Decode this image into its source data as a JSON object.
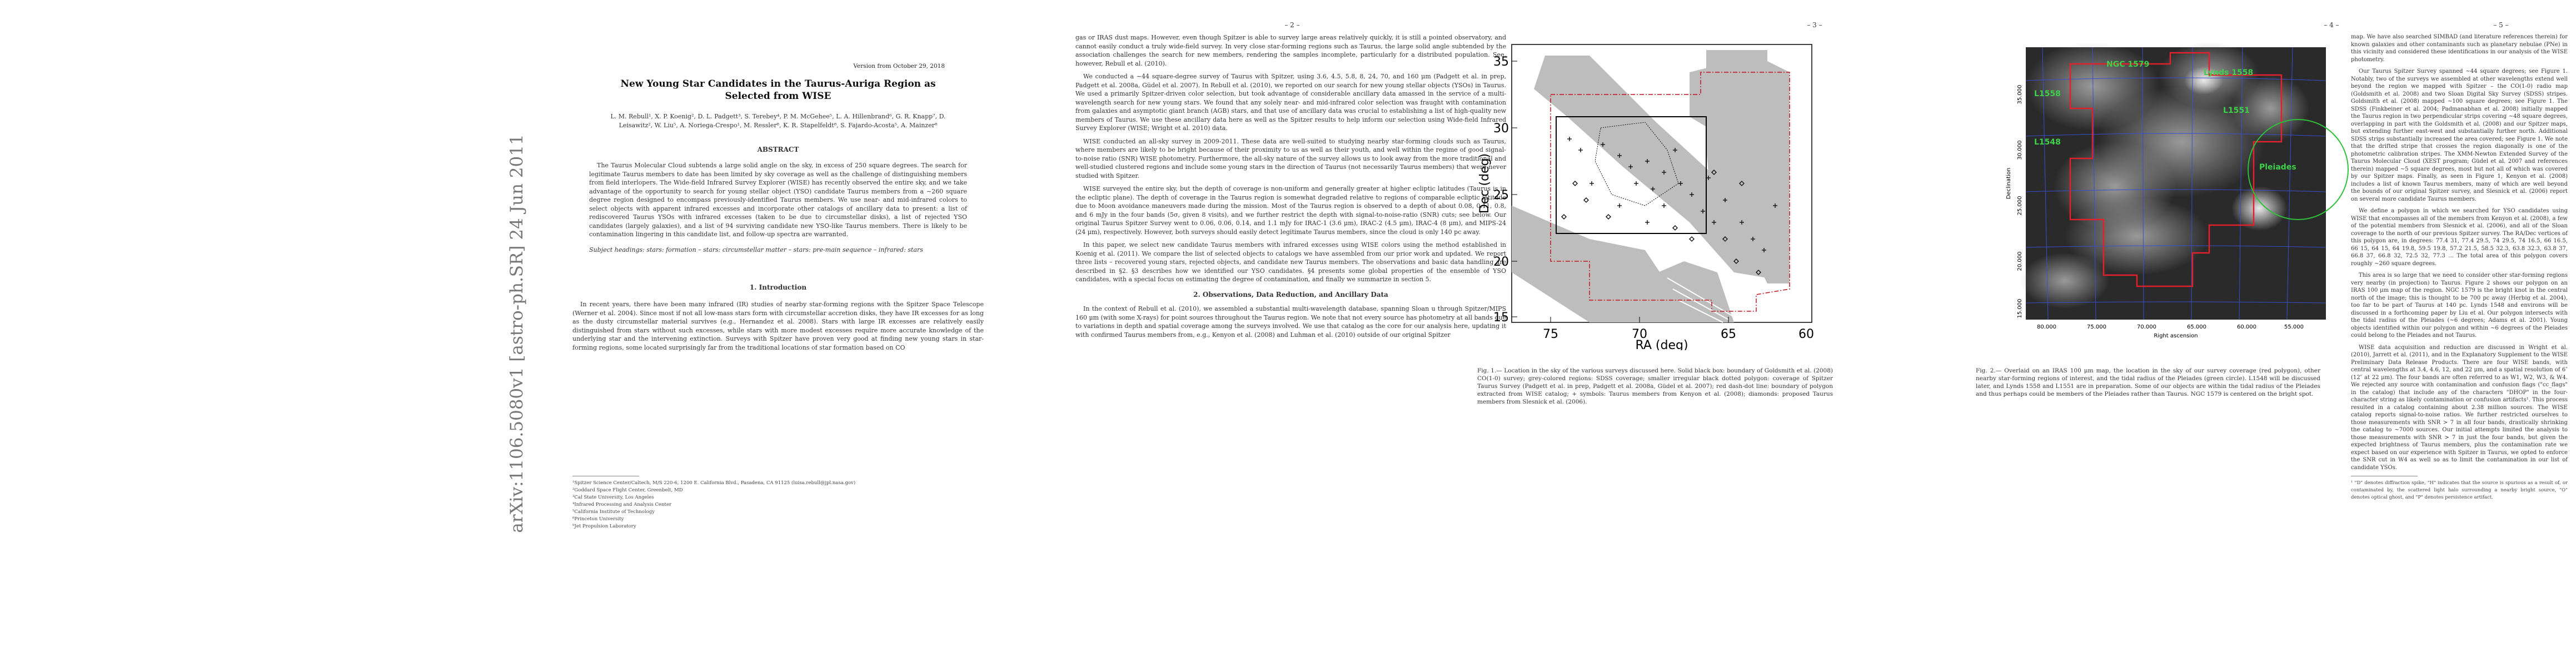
{
  "arxiv_stamp": "arXiv:1106.5080v1  [astro-ph.SR]  24 Jun 2011",
  "page1": {
    "version": "Version from October 29, 2018",
    "title": "New Young Star Candidates in the Taurus-Auriga Region as Selected from WISE",
    "authors": "L. M. Rebull¹, X. P. Koenig², D. L. Padgett³, S. Terebey⁴, P. M. McGehee⁵, L. A. Hillenbrand⁶, G. R. Knapp⁷, D. Leisawitz², W. Liu⁵, A. Noriega-Crespo¹, M. Ressler⁸, K. R. Stapelfeldt⁸, S. Fajardo-Acosta⁵, A. Mainzer⁸",
    "abstract_head": "ABSTRACT",
    "abstract": "The Taurus Molecular Cloud subtends a large solid angle on the sky, in excess of 250 square degrees. The search for legitimate Taurus members to date has been limited by sky coverage as well as the challenge of distinguishing members from field interlopers. The Wide-field Infrared Survey Explorer (WISE) has recently observed the entire sky, and we take advantage of the opportunity to search for young stellar object (YSO) candidate Taurus members from a ∼260 square degree region designed to encompass previously-identified Taurus members. We use near- and mid-infrared colors to select objects with apparent infrared excesses and incorporate other catalogs of ancillary data to present: a list of rediscovered Taurus YSOs with infrared excesses (taken to be due to circumstellar disks), a list of rejected YSO candidates (largely galaxies), and a list of 94 surviving candidate new YSO-like Taurus members. There is likely to be contamination lingering in this candidate list, and follow-up spectra are warranted.",
    "keywords": "Subject headings: stars: formation – stars: circumstellar matter – stars: pre-main sequence – infrared: stars",
    "intro_head": "1.    Introduction",
    "intro": "In recent years, there have been many infrared (IR) studies of nearby star-forming regions with the Spitzer Space Telescope (Werner et al. 2004). Since most if not all low-mass stars form with circumstellar accretion disks, they have IR excesses for as long as the dusty circumstellar material survives (e.g., Hernandez et al. 2008). Stars with large IR excesses are relatively easily distinguished from stars without such excesses, while stars with more modest excesses require more accurate knowledge of the underlying star and the intervening extinction. Surveys with Spitzer have proven very good at finding new young stars in star-forming regions, some located surprisingly far from the traditional locations of star formation based on CO",
    "footnotes": [
      "¹Spitzer Science Center/Caltech, M/S 220-6, 1200 E. California Blvd., Pasadena, CA 91125 (luisa.rebull@jpl.nasa.gov)",
      "²Goddard Space Flight Center, Greenbelt, MD",
      "³Cal State University, Los Angeles",
      "⁴Infrared Processing and Analysis Center",
      "⁵California Institute of Technology",
      "⁶Princeton University",
      "⁸Jet Propulsion Laboratory"
    ]
  },
  "page2": {
    "num": "– 2 –",
    "p1": "gas or IRAS dust maps. However, even though Spitzer is able to survey large areas relatively quickly, it is still a pointed observatory, and cannot easily conduct a truly wide-field survey. In very close star-forming regions such as Taurus, the large solid angle subtended by the association challenges the search for new members, rendering the samples incomplete, particularly for a distributed population. See, however, Rebull et al. (2010).",
    "p2": "We conducted a ∼44 square-degree survey of Taurus with Spitzer, using 3.6, 4.5, 5.8, 8, 24, 70, and 160 μm (Padgett et al. in prep, Padgett et al. 2008a, Güdel et al. 2007). In Rebull et al. (2010), we reported on our search for new young stellar objects (YSOs) in Taurus. We used a primarily Spitzer-driven color selection, but took advantage of considerable ancillary data amassed in the service of a multi-wavelength search for new young stars. We found that any solely near- and mid-infrared color selection was fraught with contamination from galaxies and asymptotic giant branch (AGB) stars, and that use of ancillary data was crucial to establishing a list of high-quality new members of Taurus. We use these ancillary data here as well as the Spitzer results to help inform our selection using Wide-field Infrared Survey Explorer (WISE; Wright et al. 2010) data.",
    "p3": "WISE conducted an all-sky survey in 2009-2011. These data are well-suited to studying nearby star-forming clouds such as Taurus, where members are likely to be bright because of their proximity to us as well as their youth, and well within the regime of good signal-to-noise ratio (SNR) WISE photometry. Furthermore, the all-sky nature of the survey allows us to look away from the more traditional and well-studied clustered regions and include some young stars in the direction of Taurus (not necessarily Taurus members) that were never studied with Spitzer.",
    "p4": "WISE surveyed the entire sky, but the depth of coverage is non-uniform and generally greater at higher ecliptic latitudes (Taurus is in the ecliptic plane). The depth of coverage in the Taurus region is somewhat degraded relative to regions of comparable ecliptic latitude due to Moon avoidance maneuvers made during the mission. Most of the Taurus region is observed to a depth of about 0.08, 0.11, 0.8, and 6 mJy in the four bands (5σ, given 8 visits), and we further restrict the depth with signal-to-noise-ratio (SNR) cuts; see below. Our original Taurus Spitzer Survey went to 0.06, 0.06, 0.14, and 1.1 mJy for IRAC-1 (3.6 μm), IRAC-2 (4.5 μm), IRAC-4 (8 μm), and MIPS-24 (24 μm), respectively. However, both surveys should easily detect legitimate Taurus members, since the cloud is only 140 pc away.",
    "p5": "In this paper, we select new candidate Taurus members with infrared excesses using WISE colors using the method established in Koenig et al. (2011). We compare the list of selected objects to catalogs we have assembled from our prior work and updated. We report three lists – recovered young stars, rejected objects, and candidate new Taurus members. The observations and basic data handling are described in §2. §3 describes how we identified our YSO candidates. §4 presents some global properties of the ensemble of YSO candidates, with a special focus on estimating the degree of contamination, and finally we summarize in section 5.",
    "sec2_head": "2.    Observations, Data Reduction, and Ancillary Data",
    "p6": "In the context of Rebull et al. (2010), we assembled a substantial multi-wavelength database, spanning Sloan u through Spitzer/MIPS 160 μm (with some X-rays) for point sources throughout the Taurus region. We note that not every source has photometry at all bands due to variations in depth and spatial coverage among the surveys involved. We use that catalog as the core for our analysis here, updating it with confirmed Taurus members from, e.g., Kenyon et al. (2008) and Luhman et al. (2010) outside of our original Spitzer"
  },
  "page3": {
    "num": "– 3 –",
    "caption": "Fig. 1.— Location in the sky of the various surveys discussed here. Solid black box: boundary of Goldsmith et al. (2008) CO(1-0) survey; grey-colored regions: SDSS coverage; smaller irregular black dotted polygon: coverage of Spitzer Taurus Survey (Padgett et al. in prep, Padgett et al. 2008a, Güdel et al. 2007); red dash-dot line: boundary of polygon extracted from WISE catalog; + symbols: Taurus members from Kenyon et al. (2008); diamonds: proposed Taurus members from Slesnick et al. (2006)."
  },
  "page4": {
    "num": "– 4 –",
    "caption": "Fig. 2.— Overlaid on an IRAS 100 μm map, the location in the sky of our survey coverage (red polygon), other nearby star-forming regions of interest, and the tidal radius of the Pleiades (green circle). L1548 will be discussed later, and Lynds 1558 and L1551 are in preparation. Some of our objects are within the tidal radius of the Pleiades and thus perhaps could be members of the Pleiades rather than Taurus. NGC 1579 is centered on the bright spot."
  },
  "page5": {
    "num": "– 5 –",
    "p1": "map. We have also searched SIMBAD (and literature references therein) for known galaxies and other contaminants such as planetary nebulae (PNe) in this vicinity and considered these identifications in our analysis of the WISE photometry.",
    "p2": "Our Taurus Spitzer Survey spanned ∼44 square degrees; see Figure 1. Notably, two of the surveys we assembled at other wavelengths extend well beyond the region we mapped with Spitzer – the CO(1-0) radio map (Goldsmith et al. 2008) and two Sloan Digital Sky Survey (SDSS) stripes. Goldsmith et al. (2008) mapped ∼100 square degrees; see Figure 1. The SDSS (Finkbeiner et al. 2004; Padmanabhan et al. 2008) initially mapped the Taurus region in two perpendicular strips covering ∼48 square degrees, overlapping in part with the Goldsmith et al. (2008) and our Spitzer maps, but extending further east-west and substantially further north. Additional SDSS strips substantially increased the area covered; see Figure 1. We note that the drifted stripe that crosses the region diagonally is one of the photometric calibration stripes. The XMM-Newton Extended Survey of the Taurus Molecular Cloud (XEST program; Güdel et al. 2007 and references therein) mapped ∼5 square degrees, most but not all of which was covered by our Spitzer maps. Finally, as seen in Figure 1, Kenyon et al. (2008) includes a list of known Taurus members, many of which are well beyond the bounds of our original Spitzer survey, and Slesnick et al. (2006) report on several more candidate Taurus members.",
    "p3": "We define a polygon in which we searched for YSO candidates using WISE that encompasses all of the members from Kenyon et al. (2008), a few of the potential members from Slesnick et al. (2006), and all of the Sloan coverage to the north of our previous Spitzer survey. The RA/Dec vertices of this polygon are, in degrees: 77.4 31, 77.4 29.5, 74 29.5, 74 16.5, 66 16.5, 66 15, 64 15, 64 19.8, 59.5 19.8, 57.2 21.5, 58.5 32.3, 63.8 32.3, 63.8 37, 66.8 37, 66.8 32, 72.5 32, 77.3 ... The total area of this polygon covers roughly ∼260 square degrees.",
    "p4": "This area is so large that we need to consider other star-forming regions very nearby (in projection) to Taurus. Figure 2 shows our polygon on an IRAS 100 μm map of the region. NGC 1579 is the bright knot in the central north of the image; this is thought to be 700 pc away (Herbig et al. 2004), too far to be part of Taurus at 140 pc. Lynds 1548 and environs will be discussed in a forthcoming paper by Liu et al. Our polygon intersects with the tidal radius of the Pleiades (∼6 degrees; Adams et al. 2001). Young objects identified within our polygon and within ∼6 degrees of the Pleiades could belong to the Pleiades and not Taurus.",
    "p5": "WISE data acquisition and reduction are discussed in Wright et al. (2010), Jarrett et al. (2011), and in the Explanatory Supplement to the WISE Preliminary Data Release Products. There are four WISE bands, with central wavelengths at 3.4, 4.6, 12, and 22 μm, and a spatial resolution of 6″ (12″ at 22 μm). The four bands are often referred to as W1, W2, W3, & W4. We rejected any source with contamination and confusion flags (\"cc_flags\" in the catalog) that include any of the characters \"DHOP\" in the four-character string as likely contamination or confusion artifacts¹. This process resulted in a catalog containing about 2.38 million sources. The WISE catalog reports signal-to-noise ratios. We further restricted ourselves to those measurements with SNR > 7 in all four bands, drastically shrinking the catalog to ∼7000 sources. Our initial attempts limited the analysis to those measurements with SNR > 7 in just the four bands, but given the expected brightness of Taurus members, plus the contamination rate we expect based on our experience with Spitzer in Taurus, we opted to enforce the SNR cut in W4 as well so as to limit the contamination in our list of candidate YSOs.",
    "footnote": "¹ \"D\" denotes diffraction spike, \"H\" indicates that the source is spurious as a result of, or contaminated by, the scattered light halo surrounding a nearby bright source, \"O\" denotes optical ghost, and \"P\" denotes persistence artifact."
  },
  "fig1": {
    "xlabel": "RA (deg)",
    "ylabel": "Dec (deg)",
    "xticks": [
      "75",
      "70",
      "65",
      "60"
    ],
    "yticks": [
      "35",
      "30",
      "25",
      "20",
      "15"
    ]
  },
  "fig2": {
    "xlabel": "Right ascension",
    "ylabel": "Declination",
    "xticks": [
      "80.000",
      "75.000",
      "70.000",
      "65.000",
      "60.000",
      "55.000"
    ],
    "yticks": [
      "35.000",
      "30.000",
      "25.000",
      "20.000",
      "15.000"
    ],
    "labels": {
      "ngc": "NGC 1579",
      "l1548": "L1548",
      "pleiades": "Pleiades",
      "l1551": "L1551",
      "lynds": "Lynds 1558",
      "nw": "L1558"
    },
    "colors": {
      "polygon": "#e0202a",
      "circle": "#2fbf3a",
      "label": "#3fd04a",
      "grid": "#3a4fd0"
    }
  }
}
